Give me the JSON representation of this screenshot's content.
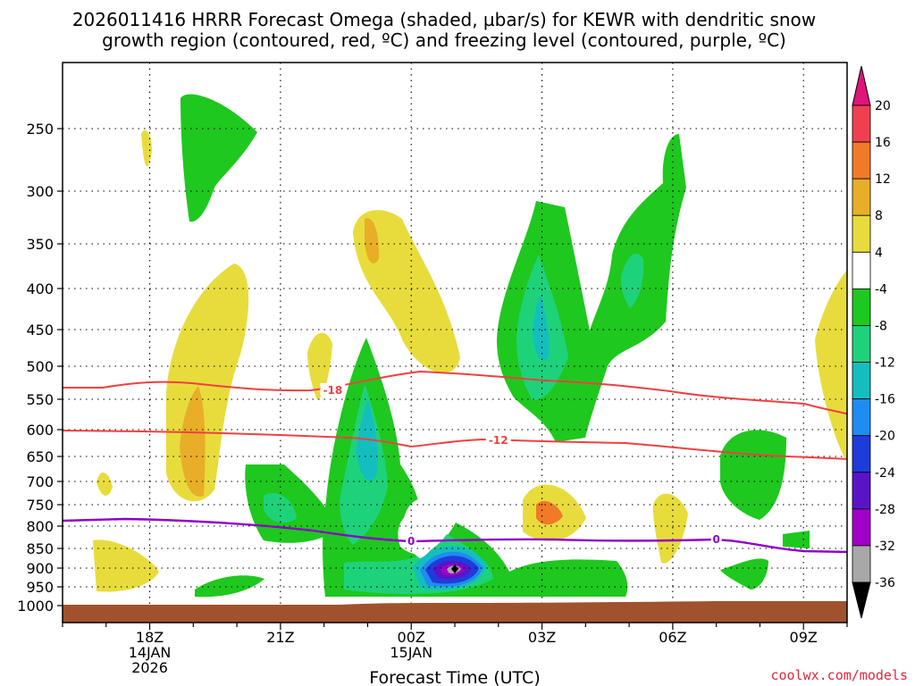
{
  "chart_data": {
    "type": "contour",
    "title_line1": "2026011416 HRRR Forecast Omega (shaded, µbar/s) for KEWR with dendritic snow",
    "title_line2": "growth region (contoured, red, ºC) and freezing level (contoured, purple, ºC)",
    "xlabel": "Forecast Time (UTC)",
    "credit": "coolwx.com/models",
    "x_ticks": [
      {
        "label": "18Z",
        "sub1": "14JAN",
        "sub2": "2026",
        "hour": 18
      },
      {
        "label": "21Z",
        "sub1": "",
        "sub2": "",
        "hour": 21
      },
      {
        "label": "00Z",
        "sub1": "15JAN",
        "sub2": "",
        "hour": 24
      },
      {
        "label": "03Z",
        "sub1": "",
        "sub2": "",
        "hour": 27
      },
      {
        "label": "06Z",
        "sub1": "",
        "sub2": "",
        "hour": 30
      },
      {
        "label": "09Z",
        "sub1": "",
        "sub2": "",
        "hour": 33
      }
    ],
    "xlim": [
      16,
      34
    ],
    "y_ticks": [
      250,
      300,
      350,
      400,
      450,
      500,
      550,
      600,
      650,
      700,
      750,
      800,
      850,
      900,
      950,
      1000
    ],
    "ylim": [
      200,
      1010
    ],
    "contour_labels": [
      {
        "text": "-18",
        "color": "#f04040",
        "hour": 22.2,
        "p": 535
      },
      {
        "text": "-12",
        "color": "#f04040",
        "hour": 26.0,
        "p": 618
      },
      {
        "text": "0",
        "color": "#9000c8",
        "hour": 24.0,
        "p": 832
      },
      {
        "text": "0",
        "color": "#9000c8",
        "hour": 31.0,
        "p": 828
      }
    ],
    "colorbar": {
      "labels": [
        "20",
        "16",
        "12",
        "8",
        "4",
        "-4",
        "-8",
        "-12",
        "-16",
        "-20",
        "-24",
        "-28",
        "-32",
        "-36"
      ],
      "colors": [
        "#f04050",
        "#f07a28",
        "#e8ae28",
        "#e8dc3c",
        "#ffffff",
        "#1ec81e",
        "#1ed27a",
        "#14bebe",
        "#1e8cf0",
        "#1e3cdc",
        "#5a14c8",
        "#a000c8",
        "#a8a8a8"
      ],
      "top_arrow": "#e0147a",
      "bottom_arrow": "#000000"
    }
  }
}
